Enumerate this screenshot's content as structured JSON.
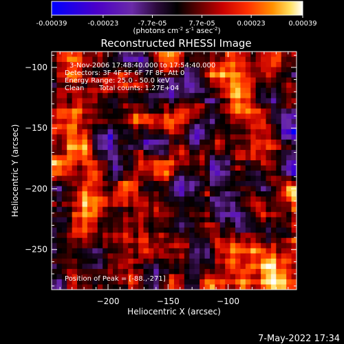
{
  "chart_data": {
    "type": "heatmap",
    "title": "Reconstructed RHESSI Image",
    "xlabel": "Heliocentric X (arcsec)",
    "ylabel": "Heliocentric Y (arcsec)",
    "xlim": [
      -247,
      -43
    ],
    "ylim": [
      -283,
      -87
    ],
    "x_ticks": [
      -200,
      -150,
      -100
    ],
    "y_ticks": [
      -100,
      -150,
      -200,
      -250
    ],
    "x_minor_step": 10,
    "y_minor_step": 10,
    "colorbar": {
      "range": [
        -0.00039,
        0.00039
      ],
      "tick_values": [
        -0.00039,
        -0.00023,
        -7.7e-05,
        7.7e-05,
        0.00023,
        0.00039
      ],
      "tick_labels": [
        "-0.00039",
        "-0.00023",
        "-7.7e-05",
        "7.7e-05",
        "0.00023",
        "0.00039"
      ],
      "unit_label": "(photons cm",
      "unit_sup1": "-2",
      "unit_mid": " s",
      "unit_sup2": "-1",
      "unit_mid2": " asec",
      "unit_sup3": "-2",
      "unit_end": ")",
      "colormap": [
        "#0000ff",
        "#4b00c8",
        "#6a2aa8",
        "#2a0a3a",
        "#000000",
        "#4a0000",
        "#c00000",
        "#ff3000",
        "#ff9000",
        "#ffe060",
        "#ffffff"
      ]
    },
    "annotations": {
      "line1": "3-Nov-2006 17:48:40.000 to 17:54:40.000",
      "line2": "Detectors: 3F 4F 5F 6F 7F 8F, Att 0",
      "line3": "Energy Range: 25.0 - 50.0 keV",
      "line4a": "Clean",
      "line4b": "Total counts: 1.27E+04",
      "peak": "Position of Peak = [-88.,-271]"
    },
    "peak_position": [
      -88,
      -271
    ],
    "grid": false
  },
  "footer": {
    "timestamp": "7-May-2022 17:34"
  }
}
